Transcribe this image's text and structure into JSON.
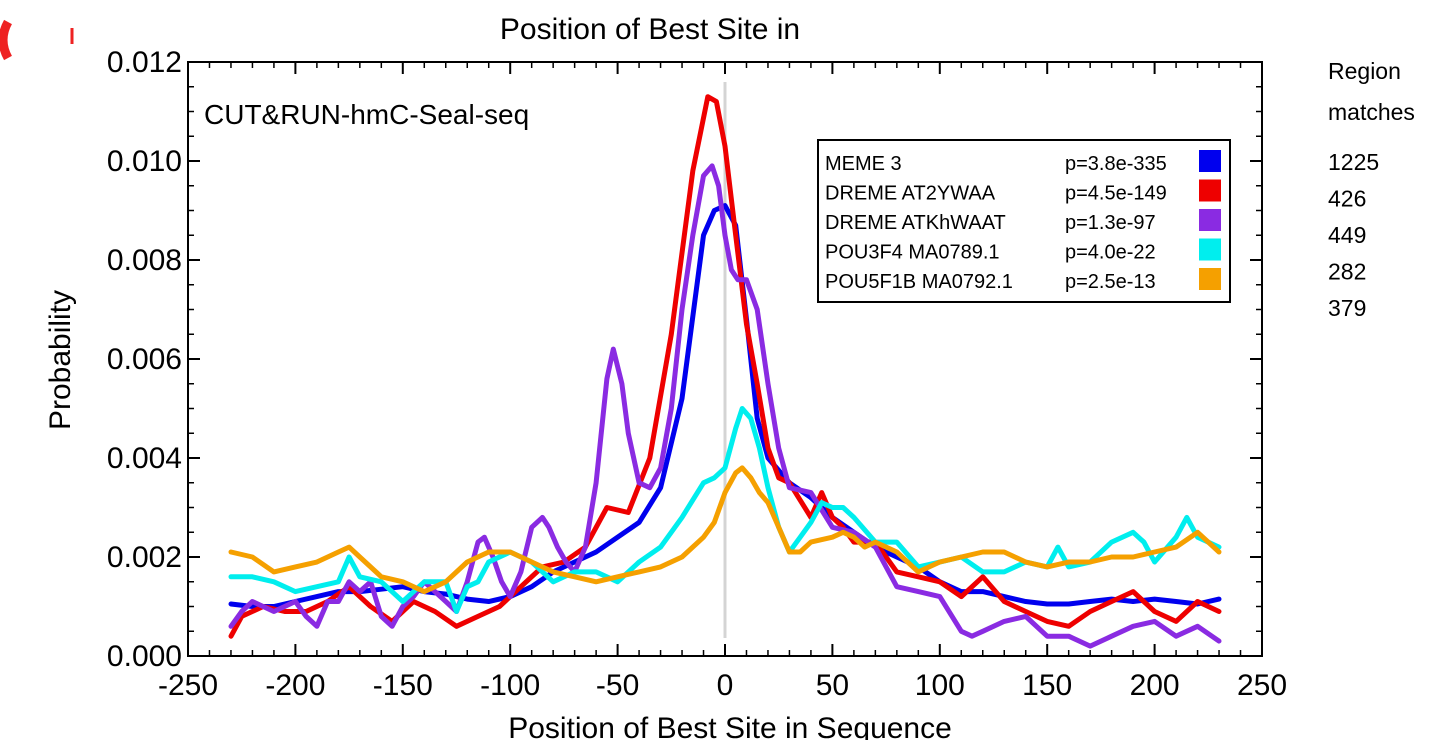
{
  "chart_data": {
    "type": "line",
    "title": "Position of Best Site in",
    "xlabel": "Position of Best Site in Sequence",
    "ylabel": "Probability",
    "annotation": "CUT&RUN-hmC-Seal-seq",
    "xlim": [
      -250,
      250
    ],
    "ylim": [
      0,
      0.012
    ],
    "xticks": [
      "-250",
      "-200",
      "-150",
      "-100",
      "-50",
      "0",
      "50",
      "100",
      "150",
      "200",
      "250"
    ],
    "yticks": [
      "0.000",
      "0.002",
      "0.004",
      "0.006",
      "0.008",
      "0.010",
      "0.012"
    ],
    "xtick_values": [
      -250,
      -200,
      -150,
      -100,
      -50,
      0,
      50,
      100,
      150,
      200,
      250
    ],
    "ytick_values": [
      0,
      0.002,
      0.004,
      0.006,
      0.008,
      0.01,
      0.012
    ],
    "grid": false,
    "reference_line_x": 0,
    "legend_placement": "top-right inside plot",
    "region_matches_header": [
      "Region",
      "matches"
    ],
    "series": [
      {
        "name": "MEME 3",
        "pvalue": "p=3.8e-335",
        "matches": "1225",
        "color": "#0000ee",
        "x": [
          -230,
          -220,
          -210,
          -200,
          -190,
          -180,
          -170,
          -160,
          -150,
          -140,
          -130,
          -120,
          -110,
          -100,
          -90,
          -80,
          -70,
          -60,
          -50,
          -40,
          -30,
          -20,
          -10,
          -5,
          0,
          5,
          10,
          15,
          20,
          30,
          40,
          50,
          60,
          70,
          80,
          90,
          100,
          110,
          120,
          130,
          140,
          150,
          160,
          170,
          180,
          190,
          200,
          210,
          220,
          230
        ],
        "y": [
          0.00105,
          0.001,
          0.001,
          0.0011,
          0.0012,
          0.0013,
          0.0013,
          0.00135,
          0.0014,
          0.0013,
          0.00125,
          0.00115,
          0.0011,
          0.0012,
          0.0014,
          0.0017,
          0.0019,
          0.0021,
          0.0024,
          0.0027,
          0.0034,
          0.0052,
          0.0085,
          0.009,
          0.0091,
          0.0087,
          0.0068,
          0.0048,
          0.004,
          0.0035,
          0.0032,
          0.0028,
          0.0025,
          0.0022,
          0.002,
          0.0018,
          0.0015,
          0.0013,
          0.0013,
          0.0012,
          0.0011,
          0.00105,
          0.00105,
          0.0011,
          0.00115,
          0.0011,
          0.00115,
          0.0011,
          0.00105,
          0.00115
        ]
      },
      {
        "name": "DREME AT2YWAA",
        "pvalue": "p=4.5e-149",
        "matches": "426",
        "color": "#ee0000",
        "x": [
          -230,
          -225,
          -215,
          -205,
          -195,
          -185,
          -175,
          -165,
          -155,
          -145,
          -135,
          -125,
          -115,
          -105,
          -95,
          -85,
          -75,
          -65,
          -55,
          -45,
          -35,
          -25,
          -15,
          -8,
          -4,
          0,
          5,
          10,
          15,
          20,
          25,
          30,
          40,
          45,
          50,
          55,
          60,
          70,
          80,
          90,
          100,
          110,
          120,
          130,
          140,
          150,
          160,
          170,
          180,
          190,
          200,
          210,
          220,
          230
        ],
        "y": [
          0.0004,
          0.0008,
          0.001,
          0.0009,
          0.0009,
          0.0011,
          0.0014,
          0.001,
          0.0007,
          0.0011,
          0.0009,
          0.0006,
          0.0008,
          0.001,
          0.0014,
          0.0018,
          0.0019,
          0.0022,
          0.003,
          0.0029,
          0.004,
          0.0065,
          0.0098,
          0.0113,
          0.0112,
          0.0103,
          0.0085,
          0.0067,
          0.0055,
          0.0042,
          0.0036,
          0.0035,
          0.0028,
          0.0033,
          0.0028,
          0.0026,
          0.0023,
          0.0023,
          0.0017,
          0.0016,
          0.0015,
          0.0012,
          0.0016,
          0.0011,
          0.0009,
          0.0007,
          0.0006,
          0.0009,
          0.0011,
          0.0013,
          0.0009,
          0.0007,
          0.0011,
          0.0009
        ]
      },
      {
        "name": "DREME ATKhWAAT",
        "pvalue": "p=1.3e-97",
        "matches": "449",
        "color": "#8a2be2",
        "x": [
          -230,
          -225,
          -220,
          -210,
          -200,
          -195,
          -190,
          -185,
          -180,
          -175,
          -170,
          -165,
          -160,
          -155,
          -150,
          -145,
          -140,
          -135,
          -130,
          -125,
          -120,
          -115,
          -112,
          -108,
          -104,
          -100,
          -95,
          -90,
          -85,
          -82,
          -78,
          -74,
          -70,
          -65,
          -60,
          -55,
          -52,
          -48,
          -45,
          -40,
          -35,
          -30,
          -25,
          -20,
          -15,
          -10,
          -6,
          -3,
          0,
          3,
          6,
          10,
          15,
          20,
          25,
          30,
          40,
          50,
          60,
          70,
          80,
          90,
          100,
          110,
          115,
          120,
          130,
          140,
          150,
          160,
          170,
          180,
          190,
          200,
          210,
          220,
          230
        ],
        "y": [
          0.0006,
          0.0009,
          0.0011,
          0.0009,
          0.0011,
          0.0008,
          0.0006,
          0.0011,
          0.0011,
          0.0015,
          0.0013,
          0.0015,
          0.0008,
          0.0006,
          0.001,
          0.0012,
          0.0015,
          0.0013,
          0.0011,
          0.0009,
          0.0015,
          0.0023,
          0.0024,
          0.002,
          0.0015,
          0.0012,
          0.0017,
          0.0026,
          0.0028,
          0.0026,
          0.0022,
          0.0019,
          0.0017,
          0.0022,
          0.0035,
          0.0056,
          0.0062,
          0.0055,
          0.0045,
          0.0035,
          0.0034,
          0.0038,
          0.005,
          0.007,
          0.0085,
          0.0097,
          0.0099,
          0.0095,
          0.0085,
          0.0078,
          0.0076,
          0.0076,
          0.007,
          0.0055,
          0.0042,
          0.0034,
          0.0033,
          0.0026,
          0.0025,
          0.0022,
          0.0014,
          0.0013,
          0.0012,
          0.0005,
          0.0004,
          0.0005,
          0.0007,
          0.0008,
          0.0004,
          0.0004,
          0.0002,
          0.0004,
          0.0006,
          0.0007,
          0.0004,
          0.0006,
          0.0003
        ]
      },
      {
        "name": "POU3F4 MA0789.1",
        "pvalue": "p=4.0e-22",
        "matches": "282",
        "color": "#00eeee",
        "x": [
          -230,
          -220,
          -210,
          -200,
          -190,
          -180,
          -175,
          -170,
          -160,
          -150,
          -140,
          -130,
          -125,
          -120,
          -115,
          -110,
          -100,
          -90,
          -80,
          -70,
          -60,
          -50,
          -40,
          -30,
          -20,
          -10,
          -5,
          0,
          5,
          8,
          12,
          16,
          20,
          25,
          30,
          35,
          40,
          45,
          50,
          55,
          60,
          70,
          80,
          90,
          100,
          110,
          120,
          130,
          140,
          150,
          155,
          160,
          170,
          180,
          190,
          195,
          200,
          210,
          215,
          220,
          230
        ],
        "y": [
          0.0016,
          0.0016,
          0.0015,
          0.0013,
          0.0014,
          0.0015,
          0.002,
          0.0016,
          0.0015,
          0.0011,
          0.0015,
          0.0015,
          0.0009,
          0.0014,
          0.0015,
          0.0019,
          0.0021,
          0.0019,
          0.0015,
          0.0017,
          0.0017,
          0.0015,
          0.0019,
          0.0022,
          0.0028,
          0.0035,
          0.0036,
          0.0038,
          0.0046,
          0.005,
          0.0048,
          0.0042,
          0.0034,
          0.0026,
          0.0021,
          0.0024,
          0.0027,
          0.0031,
          0.003,
          0.003,
          0.0028,
          0.0023,
          0.0023,
          0.0018,
          0.0019,
          0.002,
          0.0017,
          0.0017,
          0.0019,
          0.0018,
          0.0022,
          0.0018,
          0.0019,
          0.0023,
          0.0025,
          0.0023,
          0.0019,
          0.0024,
          0.0028,
          0.0024,
          0.0022
        ]
      },
      {
        "name": "POU5F1B MA0792.1",
        "pvalue": "p=2.5e-13",
        "matches": "379",
        "color": "#f5a000",
        "x": [
          -230,
          -220,
          -210,
          -200,
          -190,
          -180,
          -175,
          -170,
          -160,
          -150,
          -140,
          -130,
          -120,
          -110,
          -100,
          -90,
          -80,
          -70,
          -60,
          -50,
          -40,
          -30,
          -20,
          -10,
          -5,
          0,
          5,
          8,
          12,
          16,
          20,
          25,
          30,
          35,
          40,
          50,
          55,
          60,
          65,
          70,
          80,
          90,
          100,
          110,
          120,
          130,
          140,
          150,
          160,
          170,
          180,
          190,
          200,
          210,
          220,
          230
        ],
        "y": [
          0.0021,
          0.002,
          0.0017,
          0.0018,
          0.0019,
          0.0021,
          0.0022,
          0.002,
          0.0016,
          0.0015,
          0.0013,
          0.0015,
          0.0019,
          0.0021,
          0.0021,
          0.0019,
          0.0017,
          0.0016,
          0.0015,
          0.0016,
          0.0017,
          0.0018,
          0.002,
          0.0024,
          0.0027,
          0.0033,
          0.0037,
          0.0038,
          0.0036,
          0.0033,
          0.0031,
          0.0026,
          0.0021,
          0.0021,
          0.0023,
          0.0024,
          0.0025,
          0.0024,
          0.0022,
          0.0023,
          0.0021,
          0.0017,
          0.0019,
          0.002,
          0.0021,
          0.0021,
          0.0019,
          0.0018,
          0.0019,
          0.0019,
          0.002,
          0.002,
          0.0021,
          0.0022,
          0.0025,
          0.0021
        ]
      }
    ]
  }
}
